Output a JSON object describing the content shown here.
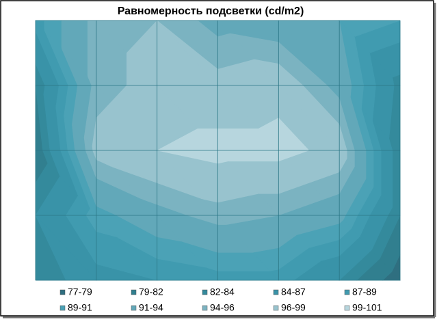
{
  "chart_data": {
    "type": "contour",
    "title": "Равномерность подсветки (cd/m2)",
    "grid_values": [
      [
        88,
        95,
        96,
        93,
        92,
        91,
        89
      ],
      [
        82,
        95,
        97,
        97,
        98,
        93,
        83
      ],
      [
        80,
        97,
        99,
        100,
        100,
        98,
        82
      ],
      [
        84,
        90,
        93,
        95,
        94,
        92,
        82
      ],
      [
        82,
        86,
        87,
        88,
        88,
        84,
        77
      ]
    ],
    "levels": [
      77,
      79,
      82,
      84,
      87,
      89,
      91,
      94,
      96,
      99,
      101
    ],
    "series": [
      {
        "name": "77-79",
        "color": "#2f6f80"
      },
      {
        "name": "79-82",
        "color": "#317f8f"
      },
      {
        "name": "82-84",
        "color": "#348a9c"
      },
      {
        "name": "84-87",
        "color": "#3993a8"
      },
      {
        "name": "87-89",
        "color": "#409bb0"
      },
      {
        "name": "89-91",
        "color": "#4ba2b6"
      },
      {
        "name": "91-94",
        "color": "#62a8b9"
      },
      {
        "name": "94-96",
        "color": "#7bb3c1"
      },
      {
        "name": "96-99",
        "color": "#98c3ce"
      },
      {
        "name": "99-101",
        "color": "#b7d6de"
      }
    ],
    "grid": true
  }
}
